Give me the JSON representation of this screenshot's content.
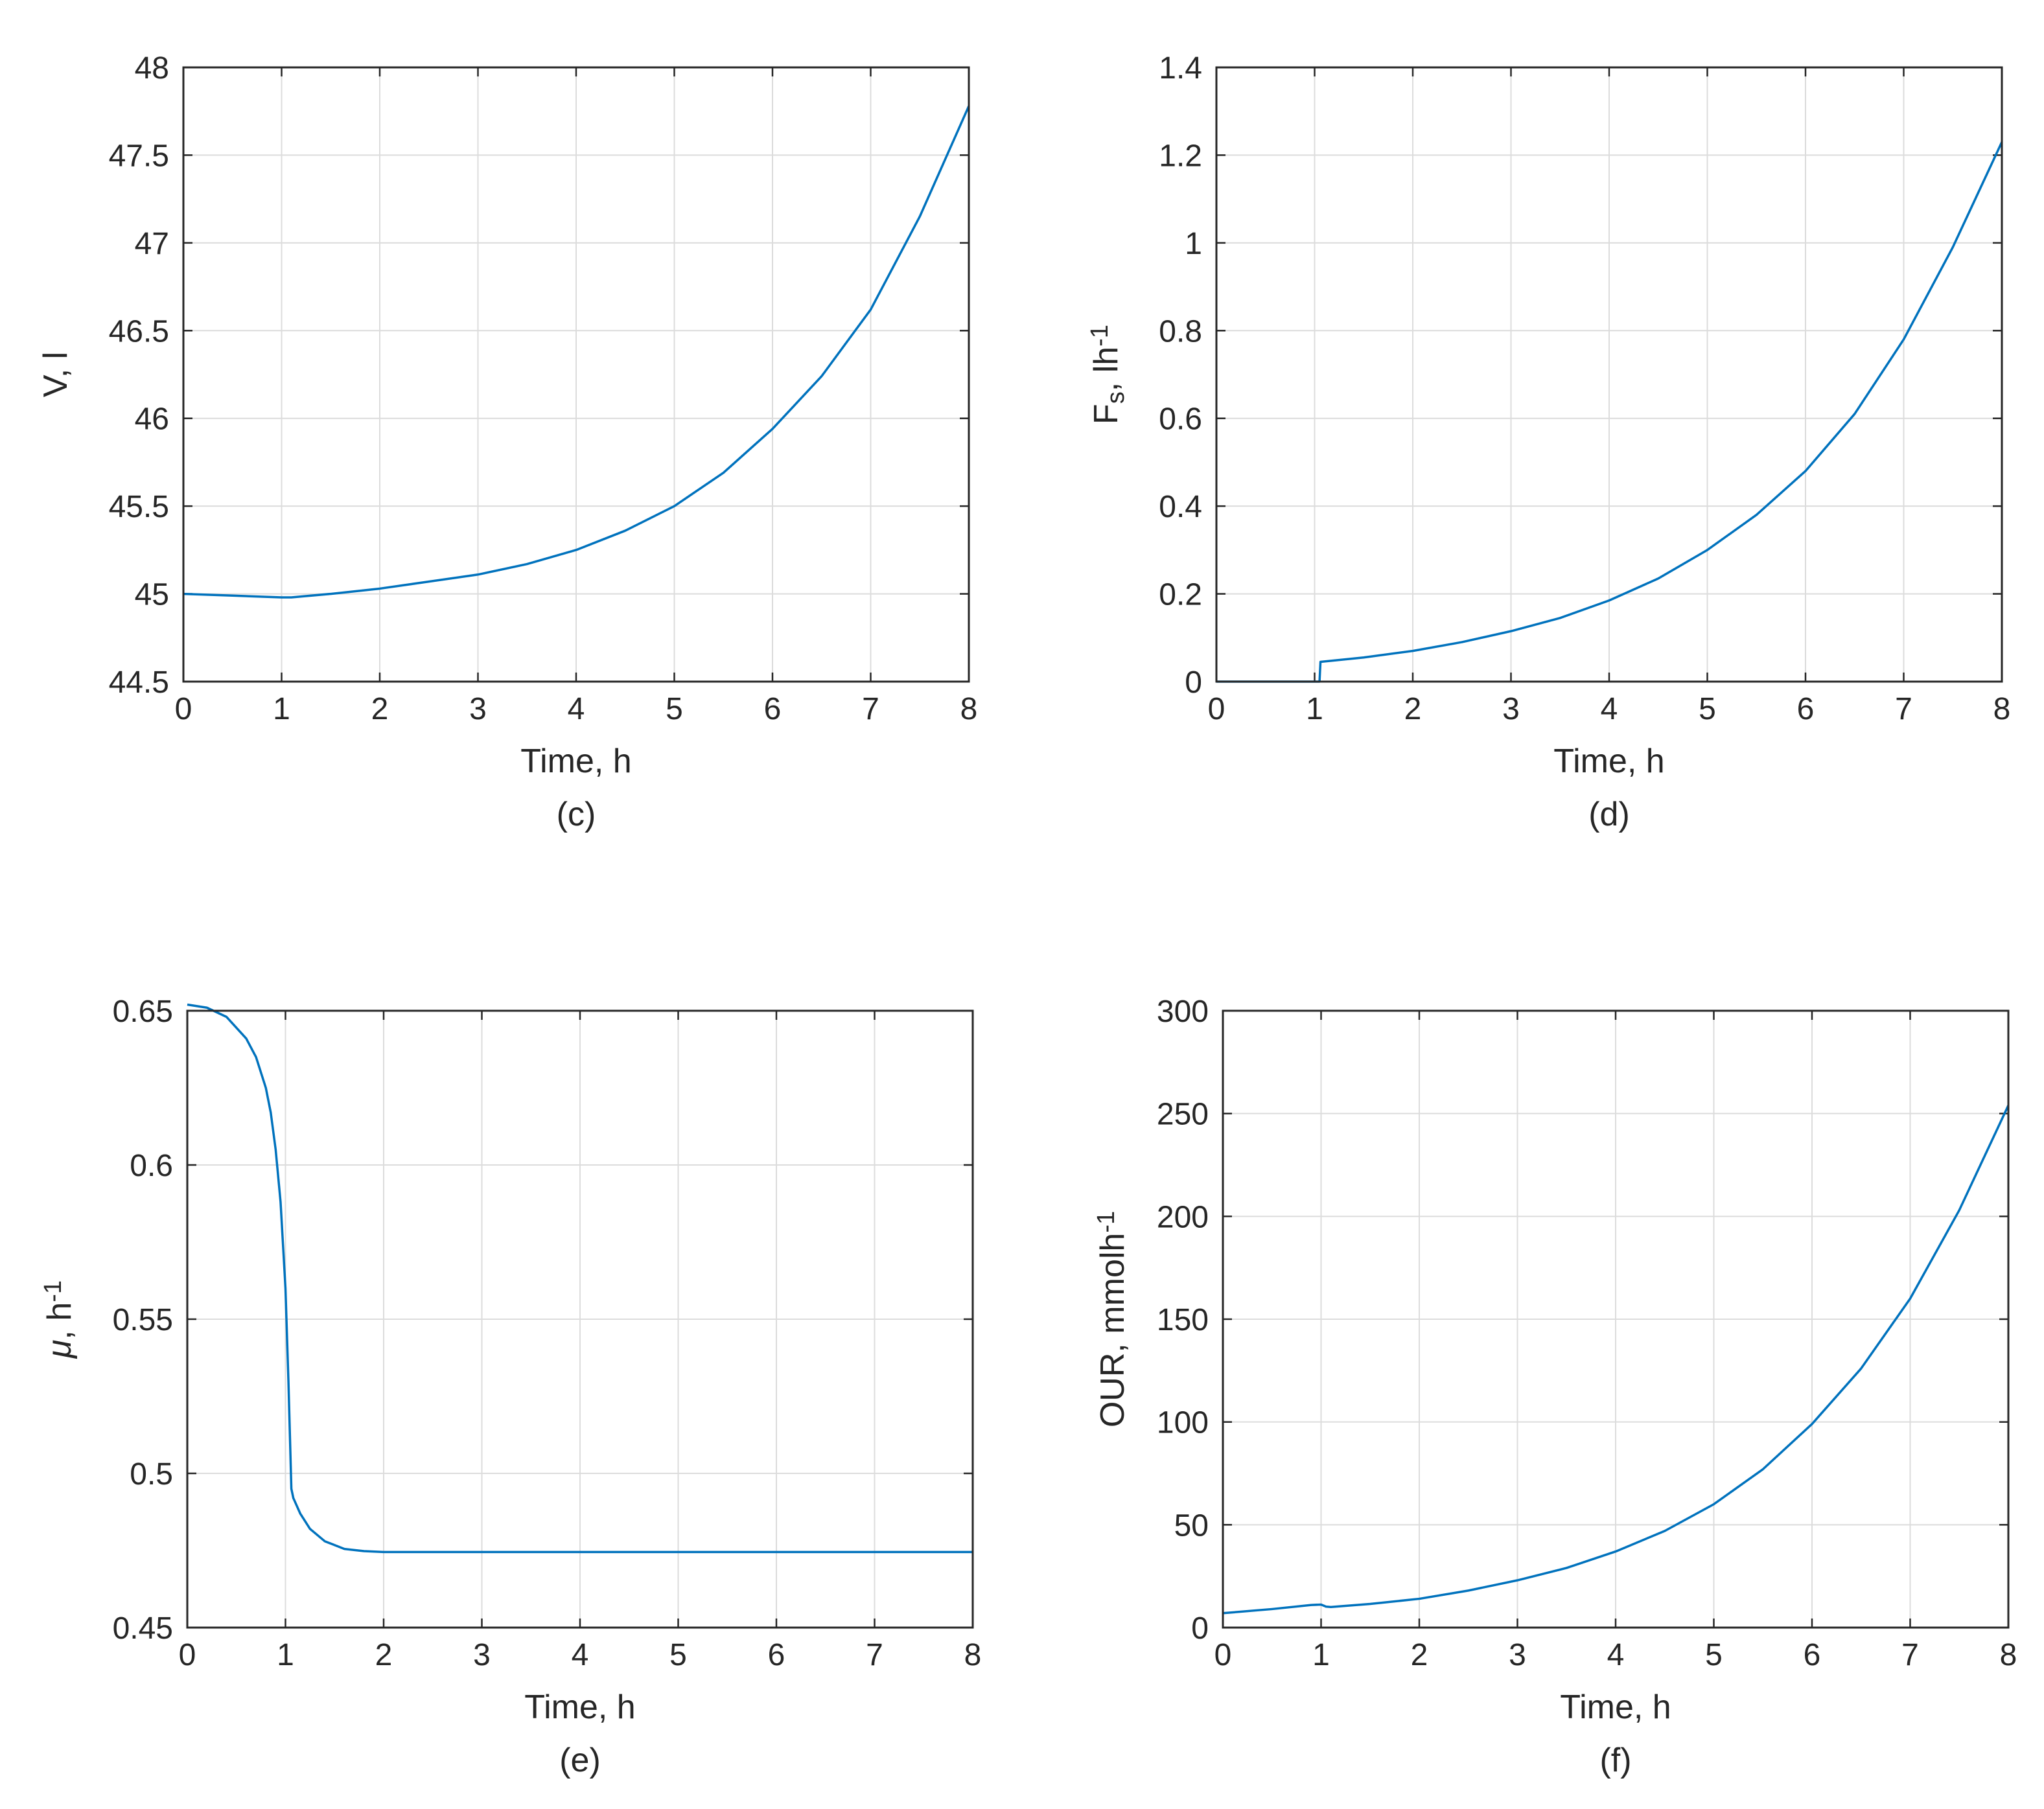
{
  "chart_data": [
    {
      "type": "line",
      "panel": "c",
      "caption": "(c)",
      "xlabel": "Time, h",
      "ylabel_parts": [
        {
          "text": "V, l",
          "style": "normal"
        }
      ],
      "xlim": [
        0,
        8
      ],
      "ylim": [
        44.5,
        48
      ],
      "xticks": [
        0,
        1,
        2,
        3,
        4,
        5,
        6,
        7,
        8
      ],
      "yticks": [
        44.5,
        45,
        45.5,
        46,
        46.5,
        47,
        47.5,
        48
      ],
      "ytick_labels": [
        "44.5",
        "45",
        "45.5",
        "46",
        "46.5",
        "47",
        "47.5",
        "48"
      ],
      "grid": true,
      "line_color": "#0072BD",
      "series": [
        {
          "name": "V",
          "x": [
            0,
            0.5,
            1.0,
            1.1,
            1.5,
            2,
            2.5,
            3,
            3.5,
            4,
            4.5,
            5,
            5.5,
            6,
            6.5,
            7,
            7.5,
            8
          ],
          "y": [
            45.0,
            44.99,
            44.98,
            44.98,
            45.0,
            45.03,
            45.07,
            45.11,
            45.17,
            45.25,
            45.36,
            45.5,
            45.69,
            45.94,
            46.24,
            46.62,
            47.15,
            47.78
          ]
        }
      ]
    },
    {
      "type": "line",
      "panel": "d",
      "caption": "(d)",
      "xlabel": "Time, h",
      "ylabel_parts": [
        {
          "text": "F",
          "style": "normal"
        },
        {
          "text": "s",
          "style": "sub"
        },
        {
          "text": ", lh",
          "style": "normal"
        },
        {
          "text": "-1",
          "style": "sup"
        }
      ],
      "xlim": [
        0,
        8
      ],
      "ylim": [
        0,
        1.4
      ],
      "xticks": [
        0,
        1,
        2,
        3,
        4,
        5,
        6,
        7,
        8
      ],
      "yticks": [
        0,
        0.2,
        0.4,
        0.6,
        0.8,
        1,
        1.2,
        1.4
      ],
      "ytick_labels": [
        "0",
        "0.2",
        "0.4",
        "0.6",
        "0.8",
        "1",
        "1.2",
        "1.4"
      ],
      "grid": true,
      "line_color": "#0072BD",
      "series": [
        {
          "name": "Fs",
          "x": [
            0,
            1.05,
            1.06,
            1.5,
            2,
            2.5,
            3,
            3.5,
            4,
            4.5,
            5,
            5.5,
            6,
            6.5,
            7,
            7.5,
            8
          ],
          "y": [
            0,
            0,
            0.045,
            0.055,
            0.07,
            0.09,
            0.115,
            0.145,
            0.185,
            0.235,
            0.3,
            0.38,
            0.48,
            0.61,
            0.78,
            0.99,
            1.23
          ]
        }
      ]
    },
    {
      "type": "line",
      "panel": "e",
      "caption": "(e)",
      "xlabel": "Time, h",
      "ylabel_parts": [
        {
          "text": "μ",
          "style": "italic"
        },
        {
          "text": ", h",
          "style": "normal"
        },
        {
          "text": "-1",
          "style": "sup"
        }
      ],
      "xlim": [
        0,
        8
      ],
      "ylim": [
        0.45,
        0.65
      ],
      "xticks": [
        0,
        1,
        2,
        3,
        4,
        5,
        6,
        7,
        8
      ],
      "yticks": [
        0.45,
        0.5,
        0.55,
        0.6,
        0.65
      ],
      "ytick_labels": [
        "0.45",
        "0.5",
        "0.55",
        "0.6",
        "0.65"
      ],
      "grid": true,
      "line_color": "#0072BD",
      "series": [
        {
          "name": "mu",
          "x": [
            0,
            0.2,
            0.4,
            0.6,
            0.7,
            0.8,
            0.85,
            0.9,
            0.95,
            1.0,
            1.03,
            1.06,
            1.08,
            1.15,
            1.25,
            1.4,
            1.6,
            1.8,
            2.0,
            3,
            4,
            5,
            6,
            7,
            8
          ],
          "y": [
            0.652,
            0.651,
            0.648,
            0.641,
            0.635,
            0.625,
            0.617,
            0.605,
            0.588,
            0.56,
            0.53,
            0.495,
            0.492,
            0.487,
            0.482,
            0.478,
            0.4755,
            0.4748,
            0.4745,
            0.4745,
            0.4745,
            0.4745,
            0.4745,
            0.4745,
            0.4745
          ]
        }
      ]
    },
    {
      "type": "line",
      "panel": "f",
      "caption": "(f)",
      "xlabel": "Time, h",
      "ylabel_parts": [
        {
          "text": "OUR, mmolh",
          "style": "normal"
        },
        {
          "text": "-1",
          "style": "sup"
        }
      ],
      "xlim": [
        0,
        8
      ],
      "ylim": [
        0,
        300
      ],
      "xticks": [
        0,
        1,
        2,
        3,
        4,
        5,
        6,
        7,
        8
      ],
      "yticks": [
        0,
        50,
        100,
        150,
        200,
        250,
        300
      ],
      "ytick_labels": [
        "0",
        "50",
        "100",
        "150",
        "200",
        "250",
        "300"
      ],
      "grid": true,
      "line_color": "#0072BD",
      "series": [
        {
          "name": "OUR",
          "x": [
            0,
            0.5,
            0.9,
            1.0,
            1.05,
            1.1,
            1.5,
            2,
            2.5,
            3,
            3.5,
            4,
            4.5,
            5,
            5.5,
            6,
            6.5,
            7,
            7.5,
            8
          ],
          "y": [
            7,
            9,
            11,
            11.2,
            10.2,
            10,
            11.5,
            14,
            18,
            23,
            29,
            37,
            47,
            60,
            77,
            99,
            126,
            160,
            203,
            254
          ]
        }
      ]
    }
  ]
}
